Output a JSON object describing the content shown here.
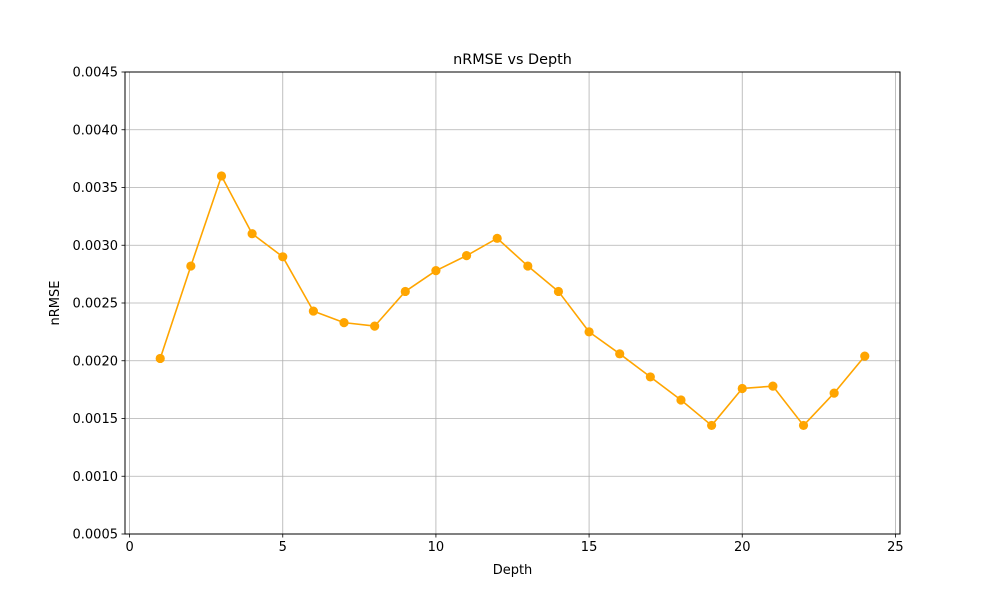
{
  "chart_data": {
    "type": "line",
    "title": "nRMSE vs Depth",
    "xlabel": "Depth",
    "ylabel": "nRMSE",
    "xlim": [
      -0.15,
      25.15
    ],
    "ylim": [
      0.0005,
      0.0045
    ],
    "xticks": [
      0,
      5,
      10,
      15,
      20,
      25
    ],
    "xtick_labels": [
      "0",
      "5",
      "10",
      "15",
      "20",
      "25"
    ],
    "yticks": [
      0.0005,
      0.001,
      0.0015,
      0.002,
      0.0025,
      0.003,
      0.0035,
      0.004,
      0.0045
    ],
    "ytick_labels": [
      "0.0005",
      "0.0010",
      "0.0015",
      "0.0020",
      "0.0025",
      "0.0030",
      "0.0035",
      "0.0040",
      "0.0045"
    ],
    "grid": true,
    "series": [
      {
        "color": "#ffa500",
        "marker": "circle",
        "x": [
          1,
          2,
          3,
          4,
          5,
          6,
          7,
          8,
          9,
          10,
          11,
          12,
          13,
          14,
          15,
          16,
          17,
          18,
          19,
          20,
          21,
          22,
          23,
          24
        ],
        "y": [
          0.00202,
          0.00282,
          0.0036,
          0.0031,
          0.0029,
          0.00243,
          0.00233,
          0.0023,
          0.0026,
          0.00278,
          0.00291,
          0.00306,
          0.00282,
          0.0026,
          0.00225,
          0.00206,
          0.00186,
          0.00166,
          0.00144,
          0.00176,
          0.00178,
          0.00144,
          0.00172,
          0.00204
        ]
      }
    ]
  }
}
